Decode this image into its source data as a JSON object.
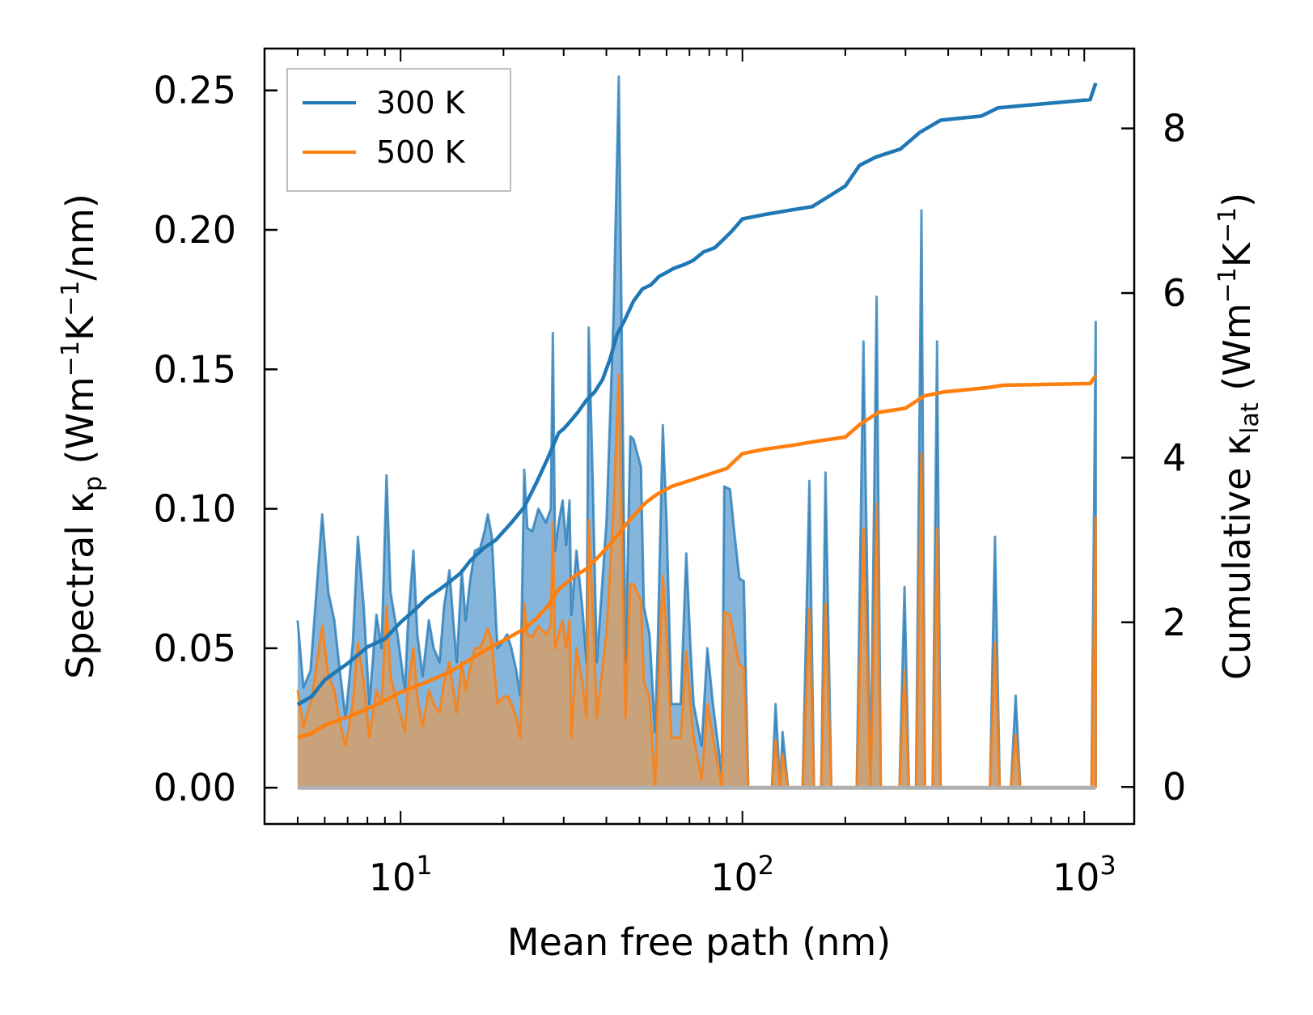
{
  "chart_data": {
    "type": "line",
    "xscale": "log",
    "xlabel": "Mean free path (nm)",
    "xlim": [
      4.0,
      1400
    ],
    "x_ticks": [
      {
        "value": 10,
        "base": "10",
        "exp": "1"
      },
      {
        "value": 100,
        "base": "10",
        "exp": "2"
      },
      {
        "value": 1000,
        "base": "10",
        "exp": "3"
      }
    ],
    "ylabel_left": {
      "pre": "Spectral κ",
      "sub": "p",
      "mid1": " (Wm",
      "sup1": "−1",
      "mid2": "K",
      "sup2": "−1",
      "post": "/nm)"
    },
    "ylabel_right": {
      "pre": "Cumulative κ",
      "sub": "lat",
      "mid1": " (Wm",
      "sup1": "−1",
      "mid2": "K",
      "sup2": "−1",
      "post": ")"
    },
    "ylim_left": [
      -0.013,
      0.265
    ],
    "ylim_right": [
      -0.45,
      8.97
    ],
    "y_left_ticks": [
      "0.00",
      "0.05",
      "0.10",
      "0.15",
      "0.20",
      "0.25"
    ],
    "y_right_ticks": [
      "0",
      "2",
      "4",
      "6",
      "8"
    ],
    "legend": {
      "position": "top-left",
      "entries": [
        "300 K",
        "500 K"
      ]
    },
    "colors": {
      "s300": "#1f77b4",
      "s500": "#ff7f0e",
      "fill300": "#85b5da",
      "fill500": "#c8a27a",
      "axis": "#000000"
    },
    "spectral_300K": [
      [
        5.0,
        0.06
      ],
      [
        5.2,
        0.036
      ],
      [
        5.45,
        0.042
      ],
      [
        5.9,
        0.098
      ],
      [
        6.15,
        0.07
      ],
      [
        6.4,
        0.06
      ],
      [
        6.6,
        0.045
      ],
      [
        6.9,
        0.025
      ],
      [
        7.25,
        0.052
      ],
      [
        7.5,
        0.09
      ],
      [
        7.8,
        0.065
      ],
      [
        8.1,
        0.03
      ],
      [
        8.5,
        0.062
      ],
      [
        8.8,
        0.05
      ],
      [
        9.1,
        0.112
      ],
      [
        9.35,
        0.07
      ],
      [
        9.8,
        0.055
      ],
      [
        10.3,
        0.035
      ],
      [
        10.5,
        0.058
      ],
      [
        10.9,
        0.085
      ],
      [
        11.2,
        0.055
      ],
      [
        11.6,
        0.04
      ],
      [
        12.1,
        0.06
      ],
      [
        12.5,
        0.05
      ],
      [
        13.0,
        0.045
      ],
      [
        13.4,
        0.065
      ],
      [
        13.9,
        0.078
      ],
      [
        14.3,
        0.058
      ],
      [
        14.6,
        0.045
      ],
      [
        15.1,
        0.078
      ],
      [
        15.5,
        0.06
      ],
      [
        16.0,
        0.075
      ],
      [
        16.5,
        0.085
      ],
      [
        17.1,
        0.086
      ],
      [
        17.6,
        0.092
      ],
      [
        18.0,
        0.098
      ],
      [
        18.5,
        0.09
      ],
      [
        19.2,
        0.05
      ],
      [
        19.8,
        0.052
      ],
      [
        20.5,
        0.055
      ],
      [
        21.1,
        0.05
      ],
      [
        21.8,
        0.042
      ],
      [
        22.4,
        0.033
      ],
      [
        23.0,
        0.114
      ],
      [
        23.5,
        0.093
      ],
      [
        24.3,
        0.092
      ],
      [
        25.3,
        0.1
      ],
      [
        26.6,
        0.095
      ],
      [
        27.5,
        0.1
      ],
      [
        27.9,
        0.163
      ],
      [
        28.3,
        0.085
      ],
      [
        29.0,
        0.095
      ],
      [
        29.8,
        0.103
      ],
      [
        30.5,
        0.087
      ],
      [
        31.2,
        0.103
      ],
      [
        31.6,
        0.062
      ],
      [
        32.7,
        0.085
      ],
      [
        34.0,
        0.065
      ],
      [
        35.0,
        0.045
      ],
      [
        35.5,
        0.165
      ],
      [
        36.5,
        0.11
      ],
      [
        37.5,
        0.045
      ],
      [
        40.0,
        0.095
      ],
      [
        42.0,
        0.17
      ],
      [
        43.5,
        0.255
      ],
      [
        45.5,
        0.045
      ],
      [
        47.0,
        0.126
      ],
      [
        48.0,
        0.125
      ],
      [
        50.5,
        0.115
      ],
      [
        51.5,
        0.065
      ],
      [
        53.5,
        0.055
      ],
      [
        55.5,
        0.02
      ],
      [
        56.5,
        0.05
      ],
      [
        58.5,
        0.13
      ],
      [
        60.0,
        0.095
      ],
      [
        62.0,
        0.03
      ],
      [
        66.0,
        0.03
      ],
      [
        68.5,
        0.084
      ],
      [
        70.5,
        0.05
      ],
      [
        72.0,
        0.03
      ],
      [
        76.0,
        0.015
      ],
      [
        79.0,
        0.05
      ],
      [
        82.0,
        0.03
      ],
      [
        87.0,
        0.005
      ],
      [
        88.5,
        0.108
      ],
      [
        92.0,
        0.107
      ],
      [
        95.0,
        0.09
      ],
      [
        98.0,
        0.075
      ],
      [
        101.0,
        0.074
      ],
      [
        104.0,
        0.0
      ],
      [
        122.0,
        0.0
      ],
      [
        125.0,
        0.03
      ],
      [
        129.0,
        0.0
      ],
      [
        131.0,
        0.02
      ],
      [
        136.0,
        0.0
      ],
      [
        150.0,
        0.0
      ],
      [
        157.0,
        0.11
      ],
      [
        162.0,
        0.0
      ],
      [
        170.0,
        0.0
      ],
      [
        175.0,
        0.113
      ],
      [
        182.0,
        0.0
      ],
      [
        216.0,
        0.0
      ],
      [
        226.0,
        0.16
      ],
      [
        237.0,
        0.0
      ],
      [
        247.0,
        0.176
      ],
      [
        254.0,
        0.0
      ],
      [
        288.0,
        0.0
      ],
      [
        298.0,
        0.072
      ],
      [
        307.0,
        0.0
      ],
      [
        322.0,
        0.0
      ],
      [
        334.0,
        0.207
      ],
      [
        342.0,
        0.0
      ],
      [
        360.0,
        0.0
      ],
      [
        371.0,
        0.16
      ],
      [
        380.0,
        0.0
      ],
      [
        530.0,
        0.0
      ],
      [
        548.0,
        0.09
      ],
      [
        566.0,
        0.0
      ],
      [
        610.0,
        0.0
      ],
      [
        630.0,
        0.033
      ],
      [
        650.0,
        0.0
      ],
      [
        1050.0,
        0.0
      ],
      [
        1080.0,
        0.167
      ],
      [
        1080.0,
        0.0
      ]
    ],
    "spectral_500K": [
      [
        5.0,
        0.035
      ],
      [
        5.2,
        0.022
      ],
      [
        5.5,
        0.032
      ],
      [
        5.9,
        0.058
      ],
      [
        6.15,
        0.04
      ],
      [
        6.4,
        0.035
      ],
      [
        6.6,
        0.025
      ],
      [
        6.9,
        0.015
      ],
      [
        7.25,
        0.03
      ],
      [
        7.5,
        0.052
      ],
      [
        7.8,
        0.038
      ],
      [
        8.1,
        0.018
      ],
      [
        8.5,
        0.035
      ],
      [
        8.8,
        0.03
      ],
      [
        9.1,
        0.065
      ],
      [
        9.35,
        0.04
      ],
      [
        9.8,
        0.03
      ],
      [
        10.3,
        0.02
      ],
      [
        10.5,
        0.035
      ],
      [
        10.9,
        0.05
      ],
      [
        11.2,
        0.032
      ],
      [
        11.6,
        0.022
      ],
      [
        12.1,
        0.035
      ],
      [
        12.5,
        0.03
      ],
      [
        13.0,
        0.027
      ],
      [
        13.4,
        0.038
      ],
      [
        13.9,
        0.045
      ],
      [
        14.3,
        0.034
      ],
      [
        14.6,
        0.027
      ],
      [
        15.1,
        0.045
      ],
      [
        15.5,
        0.035
      ],
      [
        16.0,
        0.043
      ],
      [
        16.5,
        0.05
      ],
      [
        17.1,
        0.05
      ],
      [
        17.6,
        0.054
      ],
      [
        18.0,
        0.057
      ],
      [
        18.5,
        0.052
      ],
      [
        19.2,
        0.03
      ],
      [
        19.8,
        0.032
      ],
      [
        20.5,
        0.033
      ],
      [
        21.1,
        0.03
      ],
      [
        21.8,
        0.025
      ],
      [
        22.4,
        0.018
      ],
      [
        23.0,
        0.066
      ],
      [
        23.5,
        0.055
      ],
      [
        24.3,
        0.054
      ],
      [
        25.3,
        0.058
      ],
      [
        26.6,
        0.055
      ],
      [
        27.5,
        0.058
      ],
      [
        27.9,
        0.095
      ],
      [
        28.3,
        0.05
      ],
      [
        29.0,
        0.055
      ],
      [
        29.8,
        0.06
      ],
      [
        30.5,
        0.05
      ],
      [
        31.2,
        0.06
      ],
      [
        31.6,
        0.018
      ],
      [
        32.7,
        0.05
      ],
      [
        34.0,
        0.038
      ],
      [
        35.0,
        0.025
      ],
      [
        35.5,
        0.096
      ],
      [
        36.5,
        0.064
      ],
      [
        37.5,
        0.025
      ],
      [
        40.0,
        0.055
      ],
      [
        42.0,
        0.1
      ],
      [
        43.5,
        0.148
      ],
      [
        45.5,
        0.025
      ],
      [
        47.0,
        0.073
      ],
      [
        48.0,
        0.073
      ],
      [
        50.5,
        0.067
      ],
      [
        51.5,
        0.038
      ],
      [
        53.5,
        0.032
      ],
      [
        55.5,
        0.0
      ],
      [
        56.5,
        0.03
      ],
      [
        58.5,
        0.076
      ],
      [
        60.0,
        0.055
      ],
      [
        62.0,
        0.018
      ],
      [
        66.0,
        0.018
      ],
      [
        68.5,
        0.049
      ],
      [
        70.5,
        0.03
      ],
      [
        72.0,
        0.018
      ],
      [
        76.0,
        0.003
      ],
      [
        79.0,
        0.03
      ],
      [
        82.0,
        0.018
      ],
      [
        87.0,
        0.0
      ],
      [
        88.5,
        0.063
      ],
      [
        92.0,
        0.062
      ],
      [
        95.0,
        0.052
      ],
      [
        98.0,
        0.044
      ],
      [
        101.0,
        0.043
      ],
      [
        104.0,
        0.0
      ],
      [
        122.0,
        0.0
      ],
      [
        125.0,
        0.017
      ],
      [
        129.0,
        0.0
      ],
      [
        131.0,
        0.012
      ],
      [
        136.0,
        0.0
      ],
      [
        150.0,
        0.0
      ],
      [
        157.0,
        0.064
      ],
      [
        162.0,
        0.0
      ],
      [
        170.0,
        0.0
      ],
      [
        175.0,
        0.066
      ],
      [
        182.0,
        0.0
      ],
      [
        216.0,
        0.0
      ],
      [
        226.0,
        0.093
      ],
      [
        237.0,
        0.0
      ],
      [
        247.0,
        0.102
      ],
      [
        254.0,
        0.0
      ],
      [
        288.0,
        0.0
      ],
      [
        298.0,
        0.042
      ],
      [
        307.0,
        0.0
      ],
      [
        322.0,
        0.0
      ],
      [
        334.0,
        0.12
      ],
      [
        342.0,
        0.0
      ],
      [
        360.0,
        0.0
      ],
      [
        371.0,
        0.093
      ],
      [
        380.0,
        0.0
      ],
      [
        530.0,
        0.0
      ],
      [
        548.0,
        0.052
      ],
      [
        566.0,
        0.0
      ],
      [
        610.0,
        0.0
      ],
      [
        630.0,
        0.019
      ],
      [
        650.0,
        0.0
      ],
      [
        1050.0,
        0.0
      ],
      [
        1080.0,
        0.097
      ],
      [
        1080.0,
        0.0
      ]
    ],
    "cumulative_300K": [
      [
        5.0,
        1.0
      ],
      [
        5.5,
        1.1
      ],
      [
        6.0,
        1.3
      ],
      [
        7.0,
        1.5
      ],
      [
        8.0,
        1.7
      ],
      [
        9.0,
        1.8
      ],
      [
        10.0,
        2.0
      ],
      [
        11.0,
        2.15
      ],
      [
        12.0,
        2.3
      ],
      [
        13.0,
        2.4
      ],
      [
        14.0,
        2.5
      ],
      [
        15.0,
        2.6
      ],
      [
        16.0,
        2.75
      ],
      [
        17.5,
        2.9
      ],
      [
        19.0,
        3.0
      ],
      [
        21.0,
        3.2
      ],
      [
        23.0,
        3.4
      ],
      [
        25.0,
        3.7
      ],
      [
        27.0,
        4.0
      ],
      [
        29.0,
        4.3
      ],
      [
        30.0,
        4.35
      ],
      [
        31.5,
        4.45
      ],
      [
        33.0,
        4.55
      ],
      [
        35.0,
        4.7
      ],
      [
        37.0,
        4.8
      ],
      [
        39.0,
        4.95
      ],
      [
        41.0,
        5.2
      ],
      [
        43.0,
        5.5
      ],
      [
        45.0,
        5.65
      ],
      [
        48.0,
        5.9
      ],
      [
        51.0,
        6.05
      ],
      [
        54.0,
        6.1
      ],
      [
        57.0,
        6.2
      ],
      [
        60.0,
        6.25
      ],
      [
        63.0,
        6.3
      ],
      [
        68.0,
        6.35
      ],
      [
        72.0,
        6.4
      ],
      [
        77.0,
        6.5
      ],
      [
        83.0,
        6.55
      ],
      [
        88.0,
        6.65
      ],
      [
        93.0,
        6.75
      ],
      [
        100.0,
        6.9
      ],
      [
        115.0,
        6.95
      ],
      [
        135.0,
        7.0
      ],
      [
        160.0,
        7.05
      ],
      [
        175.0,
        7.15
      ],
      [
        200.0,
        7.3
      ],
      [
        220.0,
        7.55
      ],
      [
        245.0,
        7.65
      ],
      [
        290.0,
        7.75
      ],
      [
        330.0,
        7.95
      ],
      [
        380.0,
        8.1
      ],
      [
        500.0,
        8.15
      ],
      [
        560.0,
        8.25
      ],
      [
        1040.0,
        8.35
      ],
      [
        1080.0,
        8.55
      ]
    ],
    "cumulative_500K": [
      [
        5.0,
        0.6
      ],
      [
        5.5,
        0.65
      ],
      [
        6.0,
        0.75
      ],
      [
        7.0,
        0.85
      ],
      [
        8.0,
        0.95
      ],
      [
        9.0,
        1.05
      ],
      [
        10.0,
        1.15
      ],
      [
        12.0,
        1.28
      ],
      [
        14.0,
        1.4
      ],
      [
        16.0,
        1.55
      ],
      [
        18.0,
        1.68
      ],
      [
        20.0,
        1.78
      ],
      [
        23.0,
        1.92
      ],
      [
        25.0,
        2.05
      ],
      [
        27.0,
        2.2
      ],
      [
        29.0,
        2.4
      ],
      [
        32.0,
        2.55
      ],
      [
        35.0,
        2.65
      ],
      [
        38.0,
        2.8
      ],
      [
        41.0,
        2.95
      ],
      [
        43.0,
        3.05
      ],
      [
        47.0,
        3.25
      ],
      [
        52.0,
        3.45
      ],
      [
        56.0,
        3.55
      ],
      [
        62.0,
        3.65
      ],
      [
        70.0,
        3.72
      ],
      [
        80.0,
        3.8
      ],
      [
        90.0,
        3.87
      ],
      [
        100.0,
        4.05
      ],
      [
        115.0,
        4.1
      ],
      [
        140.0,
        4.15
      ],
      [
        165.0,
        4.2
      ],
      [
        200.0,
        4.25
      ],
      [
        220.0,
        4.4
      ],
      [
        250.0,
        4.55
      ],
      [
        300.0,
        4.6
      ],
      [
        340.0,
        4.75
      ],
      [
        390.0,
        4.8
      ],
      [
        520.0,
        4.85
      ],
      [
        580.0,
        4.88
      ],
      [
        1040.0,
        4.9
      ],
      [
        1080.0,
        5.0
      ]
    ]
  }
}
